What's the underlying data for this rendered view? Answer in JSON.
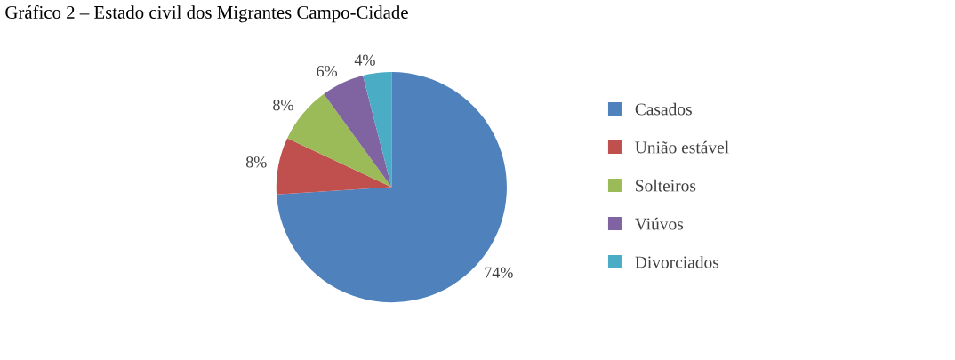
{
  "chart_data": {
    "type": "pie",
    "title": "Gráfico 2 – Estado civil dos Migrantes Campo-Cidade",
    "categories": [
      "Casados",
      "União estável",
      "Solteiros",
      "Viúvos",
      "Divorciados"
    ],
    "values": [
      74,
      8,
      8,
      6,
      4
    ],
    "value_labels": [
      "74%",
      "8%",
      "8%",
      "6%",
      "4%"
    ],
    "colors": [
      "#4f81bd",
      "#c0504d",
      "#9bbb59",
      "#8064a2",
      "#4bacc6"
    ],
    "legend": "right"
  }
}
